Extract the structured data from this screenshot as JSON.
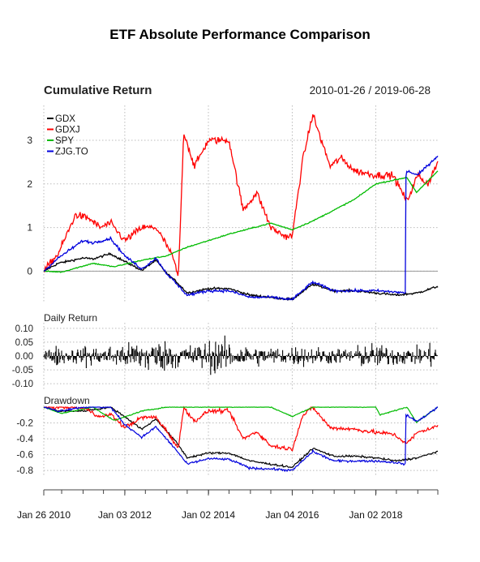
{
  "title": "ETF Absolute Performance Comparison",
  "colors": {
    "GDX": "#000000",
    "GDXJ": "#ff0000",
    "SPY": "#00bb00",
    "ZJG.TO": "#0000dd",
    "grid": "#bbbbbb",
    "axis": "#444444"
  },
  "chart_data": [
    {
      "type": "line",
      "title": "Cumulative Return",
      "subtitle": "2010-01-26 / 2019-06-28",
      "ylim": [
        -0.7,
        3.8
      ],
      "y_ticks": [
        0,
        1,
        2,
        3
      ],
      "grid": true,
      "legend": "top-left",
      "x_ticks": [
        "2010-01-26",
        "2012-01-03",
        "2014-01-02",
        "2016-01-04",
        "2018-01-02"
      ],
      "x_tick_labels": [
        "Jan 26 2010",
        "Jan 03 2012",
        "Jan 02 2014",
        "Jan 04 2016",
        "Jan 02 2018"
      ],
      "xlim": [
        "2010-01-26",
        "2019-06-28"
      ],
      "series": [
        {
          "name": "GDX",
          "x": [
            "2010-01-26",
            "2010-06-01",
            "2011-01-03",
            "2011-04-01",
            "2011-09-01",
            "2012-01-03",
            "2012-06-01",
            "2012-10-01",
            "2013-01-02",
            "2013-04-01",
            "2013-07-01",
            "2014-01-02",
            "2014-07-01",
            "2015-01-02",
            "2015-07-01",
            "2016-01-04",
            "2016-07-01",
            "2017-01-03",
            "2017-07-03",
            "2018-01-02",
            "2018-07-02",
            "2019-01-02",
            "2019-06-28"
          ],
          "y": [
            0,
            0.18,
            0.3,
            0.28,
            0.4,
            0.22,
            0.02,
            0.25,
            -0.05,
            -0.25,
            -0.5,
            -0.4,
            -0.4,
            -0.55,
            -0.6,
            -0.65,
            -0.3,
            -0.45,
            -0.45,
            -0.5,
            -0.55,
            -0.5,
            -0.35
          ]
        },
        {
          "name": "GDXJ",
          "x": [
            "2010-01-26",
            "2010-06-01",
            "2010-11-01",
            "2011-03-01",
            "2011-06-01",
            "2011-09-01",
            "2012-01-03",
            "2012-06-01",
            "2012-10-01",
            "2013-01-02",
            "2013-03-01",
            "2013-04-15",
            "2013-06-01",
            "2013-09-01",
            "2014-01-02",
            "2014-03-01",
            "2014-07-01",
            "2014-11-01",
            "2015-03-01",
            "2015-07-01",
            "2015-11-01",
            "2016-01-04",
            "2016-04-01",
            "2016-07-01",
            "2016-09-01",
            "2016-12-01",
            "2017-03-01",
            "2017-07-03",
            "2018-01-02",
            "2018-06-01",
            "2018-10-01",
            "2019-01-02",
            "2019-04-01",
            "2019-06-28"
          ],
          "y": [
            0,
            0.4,
            1.3,
            1.2,
            1.0,
            1.1,
            0.7,
            1.0,
            1.0,
            0.6,
            0.3,
            -0.15,
            3.2,
            2.4,
            3.0,
            3.0,
            3.0,
            1.4,
            1.8,
            1.0,
            0.8,
            0.8,
            2.5,
            3.6,
            3.1,
            2.4,
            2.6,
            2.3,
            2.2,
            2.2,
            1.6,
            2.2,
            2.0,
            2.5
          ]
        },
        {
          "name": "SPY",
          "x": [
            "2010-01-26",
            "2010-07-01",
            "2011-04-01",
            "2011-10-01",
            "2012-06-01",
            "2013-01-02",
            "2013-07-01",
            "2014-01-02",
            "2014-07-01",
            "2015-07-01",
            "2016-01-04",
            "2016-07-01",
            "2017-01-03",
            "2017-07-03",
            "2018-01-02",
            "2018-10-01",
            "2018-12-24",
            "2019-06-28"
          ],
          "y": [
            0,
            -0.02,
            0.18,
            0.1,
            0.25,
            0.35,
            0.55,
            0.7,
            0.85,
            1.1,
            0.95,
            1.15,
            1.4,
            1.65,
            2.0,
            2.15,
            1.8,
            2.3
          ]
        },
        {
          "name": "ZJG.TO",
          "x": [
            "2010-01-26",
            "2010-06-01",
            "2011-01-03",
            "2011-04-01",
            "2011-09-01",
            "2012-01-03",
            "2012-06-01",
            "2012-10-01",
            "2013-01-02",
            "2013-04-01",
            "2013-07-01",
            "2014-01-02",
            "2014-07-01",
            "2015-01-02",
            "2015-07-01",
            "2016-01-04",
            "2016-07-01",
            "2017-01-03",
            "2017-07-03",
            "2018-01-02",
            "2018-07-02",
            "2018-09-17",
            "2018-09-20",
            "2018-10-01",
            "2019-01-02",
            "2019-06-28"
          ],
          "y": [
            0,
            0.3,
            0.7,
            0.65,
            0.75,
            0.35,
            0.05,
            0.3,
            -0.05,
            -0.3,
            -0.55,
            -0.45,
            -0.45,
            -0.6,
            -0.6,
            -0.65,
            -0.25,
            -0.45,
            -0.45,
            -0.45,
            -0.48,
            -0.5,
            2.1,
            2.3,
            2.2,
            2.65
          ]
        }
      ]
    },
    {
      "type": "bar",
      "title": "Daily Return",
      "ylim": [
        -0.12,
        0.12
      ],
      "y_tick_labels": [
        "0.10",
        "0.05",
        "0.00",
        "-0.05",
        "-0.10"
      ],
      "y_ticks": [
        0.1,
        0.05,
        0,
        -0.05,
        -0.1
      ],
      "grid": true,
      "series": [
        {
          "name": "GDX",
          "volatility": [
            0.03,
            0.04,
            0.03,
            0.03,
            0.045,
            0.035,
            0.04,
            0.045,
            0.05,
            0.06,
            0.07,
            0.06,
            0.06,
            0.05,
            0.045,
            0.05,
            0.06,
            0.07,
            0.06,
            0.05,
            0.045,
            0.04,
            0.035,
            0.035,
            0.035,
            0.04,
            0.04,
            0.035,
            0.035,
            0.03,
            0.03,
            0.04,
            0.045,
            0.05,
            0.04,
            0.04,
            0.035,
            0.035,
            0.04,
            0.045
          ]
        }
      ]
    },
    {
      "type": "line",
      "title": "Drawdown",
      "ylim": [
        -0.88,
        0.02
      ],
      "y_ticks": [
        -0.2,
        -0.4,
        -0.6,
        -0.8
      ],
      "y_tick_labels": [
        "-0.2",
        "-0.4",
        "-0.6",
        "-0.8"
      ],
      "grid": true,
      "series": [
        {
          "name": "GDX",
          "x": [
            "2010-01-26",
            "2010-06-01",
            "2011-01-03",
            "2011-09-01",
            "2012-01-03",
            "2012-06-01",
            "2012-10-01",
            "2013-04-01",
            "2013-07-01",
            "2014-01-02",
            "2014-07-01",
            "2015-01-02",
            "2015-07-01",
            "2016-01-04",
            "2016-07-01",
            "2017-01-03",
            "2017-07-03",
            "2018-01-02",
            "2018-07-02",
            "2019-01-02",
            "2019-06-28"
          ],
          "y": [
            0,
            -0.05,
            -0.05,
            0,
            -0.12,
            -0.28,
            -0.15,
            -0.45,
            -0.64,
            -0.58,
            -0.58,
            -0.68,
            -0.72,
            -0.76,
            -0.52,
            -0.62,
            -0.62,
            -0.64,
            -0.68,
            -0.64,
            -0.56
          ]
        },
        {
          "name": "GDXJ",
          "x": [
            "2010-01-26",
            "2010-11-01",
            "2011-03-01",
            "2011-06-01",
            "2011-09-01",
            "2012-01-03",
            "2012-06-01",
            "2012-10-01",
            "2013-01-02",
            "2013-04-15",
            "2013-06-01",
            "2013-09-01",
            "2014-01-02",
            "2014-07-01",
            "2014-11-01",
            "2015-03-01",
            "2015-07-01",
            "2016-01-04",
            "2016-04-01",
            "2016-07-01",
            "2016-09-01",
            "2016-12-01",
            "2017-07-03",
            "2018-01-02",
            "2018-06-01",
            "2018-10-01",
            "2019-01-02",
            "2019-06-28"
          ],
          "y": [
            0,
            0,
            -0.04,
            -0.13,
            -0.09,
            -0.26,
            -0.13,
            -0.13,
            -0.3,
            -0.52,
            0,
            -0.18,
            -0.05,
            -0.05,
            -0.4,
            -0.31,
            -0.49,
            -0.53,
            -0.12,
            0,
            -0.11,
            -0.26,
            -0.28,
            -0.32,
            -0.34,
            -0.46,
            -0.32,
            -0.24
          ]
        },
        {
          "name": "SPY",
          "x": [
            "2010-01-26",
            "2010-07-01",
            "2011-04-01",
            "2011-10-01",
            "2012-06-01",
            "2013-01-02",
            "2014-07-01",
            "2015-07-01",
            "2016-01-04",
            "2016-07-01",
            "2017-07-03",
            "2018-01-02",
            "2018-02-08",
            "2018-10-01",
            "2018-12-24",
            "2019-06-28"
          ],
          "y": [
            0,
            -0.08,
            0,
            -0.17,
            -0.05,
            0,
            0,
            0,
            -0.12,
            0,
            0,
            0,
            -0.1,
            0,
            -0.19,
            0
          ]
        },
        {
          "name": "ZJG.TO",
          "x": [
            "2010-01-26",
            "2010-06-01",
            "2011-01-03",
            "2011-09-01",
            "2012-01-03",
            "2012-06-01",
            "2012-10-01",
            "2013-04-01",
            "2013-07-01",
            "2014-01-02",
            "2014-07-01",
            "2015-01-02",
            "2015-07-01",
            "2016-01-04",
            "2016-07-01",
            "2017-01-03",
            "2017-07-03",
            "2018-01-02",
            "2018-07-02",
            "2018-09-17",
            "2018-09-20",
            "2019-01-02",
            "2019-06-28"
          ],
          "y": [
            0,
            -0.05,
            0,
            0,
            -0.22,
            -0.38,
            -0.25,
            -0.55,
            -0.72,
            -0.65,
            -0.66,
            -0.77,
            -0.78,
            -0.8,
            -0.56,
            -0.68,
            -0.68,
            -0.68,
            -0.7,
            -0.72,
            -0.1,
            -0.18,
            0
          ]
        }
      ]
    }
  ]
}
